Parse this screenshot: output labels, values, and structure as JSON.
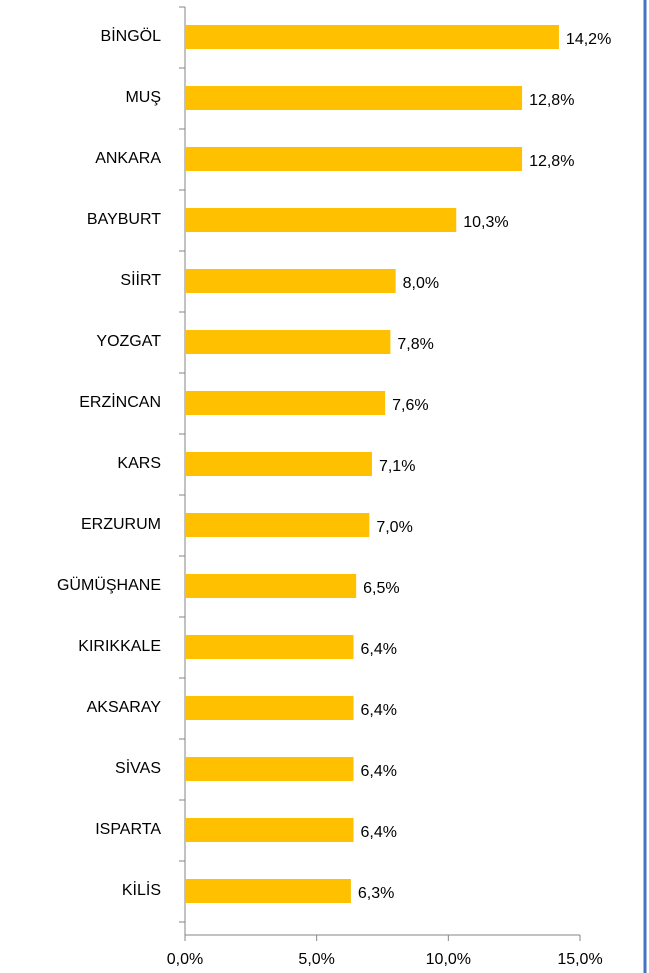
{
  "chart_data": {
    "type": "bar",
    "orientation": "horizontal",
    "categories": [
      "BİNGÖL",
      "MUŞ",
      "ANKARA",
      "BAYBURT",
      "SİİRT",
      "YOZGAT",
      "ERZİNCAN",
      "KARS",
      "ERZURUM",
      "GÜMÜŞHANE",
      "KIRIKKALE",
      "AKSARAY",
      "SİVAS",
      "ISPARTA",
      "KİLİS"
    ],
    "values": [
      14.2,
      12.8,
      12.8,
      10.3,
      8.0,
      7.8,
      7.6,
      7.1,
      7.0,
      6.5,
      6.4,
      6.4,
      6.4,
      6.4,
      6.3
    ],
    "value_labels": [
      "14,2%",
      "12,8%",
      "12,8%",
      "10,3%",
      "8,0%",
      "7,8%",
      "7,6%",
      "7,1%",
      "7,0%",
      "6,5%",
      "6,4%",
      "6,4%",
      "6,4%",
      "6,4%",
      "6,3%"
    ],
    "color": "#ffc000",
    "xlim": [
      0,
      15
    ],
    "xticks": [
      {
        "value": 0,
        "label": "0,0%"
      },
      {
        "value": 5,
        "label": "5,0%"
      },
      {
        "value": 10,
        "label": "10,0%"
      },
      {
        "value": 15,
        "label": "15,0%"
      }
    ],
    "grid": false
  }
}
